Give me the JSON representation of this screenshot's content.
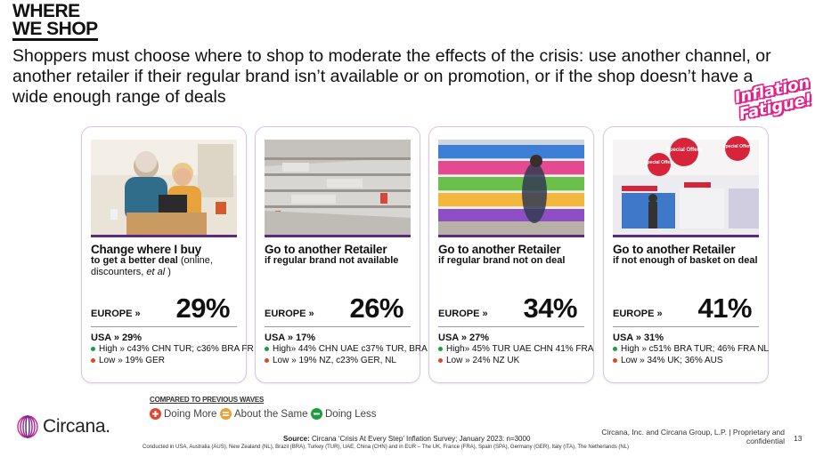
{
  "header": {
    "line1": "WHERE",
    "line2": "WE SHOP",
    "subtitle": "Shoppers must choose where to shop to moderate the effects of the crisis: use another channel, or another retailer if their regular brand isn’t available or on promotion, or if the shop doesn’t have a wide enough range of deals",
    "stamp_line1": "Inflation",
    "stamp_line2": "Fatigue!"
  },
  "cards": [
    {
      "title": "Change where I buy",
      "sub_bold": "to get a better deal",
      "sub_rest": " (online, discounters, ",
      "sub_italic": "et al",
      "sub_end": " )",
      "europe_label": "EUROPE  »",
      "europe_value": "29%",
      "usa": "USA » 29%",
      "high": "High » c43% CHN TUR; c36% BRA FR",
      "low": "Low » 19% GER"
    },
    {
      "title": "Go to another Retailer",
      "sub_bold": "if regular brand not available",
      "europe_label": "EUROPE  »",
      "europe_value": "26%",
      "usa": "USA » 17%",
      "high": "High» 44% CHN UAE c37% TUR, BRA",
      "low": "Low » 19% NZ, c23% GER, NL"
    },
    {
      "title": "Go to another Retailer",
      "sub_bold": "if regular brand not on deal",
      "europe_label": "EUROPE  »",
      "europe_value": "34%",
      "usa": "USA » 27%",
      "high": "High» 45% TUR UAE CHN 41% FRA",
      "low": "Low » 24% NZ UK"
    },
    {
      "title": "Go to another Retailer",
      "sub_bold": "if not enough of basket on deal",
      "europe_label": "EUROPE  »",
      "europe_value": "41%",
      "usa": "USA » 31%",
      "high": "High » c51% BRA TUR; 46% FRA NL",
      "low": "Low » 34% UK; 36% AUS"
    }
  ],
  "photo_signs": {
    "special_offers": "Special Offers"
  },
  "legend": {
    "title": "COMPARED TO PREVIOUS WAVES",
    "more": "Doing More",
    "same": "About the Same",
    "less": "Doing Less"
  },
  "footer": {
    "logo": "Circana.",
    "source_bold": "Source:",
    "source_rest": " Circana ‘Crisis At Every Step’ Inflation Survey; January 2023:  n=3000",
    "conducted": "Conducted in USA, Australia (AUS), New Zealand (NL), Brazil (BRA), Turkey (TUR), UAE, China (CHN) and in EUR – The UK, France (FRA), Spain (SPA), Germany (GER), Italy (ITA), The Netherlands (NL)",
    "proprietary_line1": "Circana, Inc. and Circana Group, L.P. |  Proprietary and",
    "proprietary_line2": "confidential",
    "page": "13"
  },
  "colors": {
    "accent_purple": "#5b2a7e",
    "stamp_pink": "#e0218a",
    "legend_more": "#e2442c",
    "legend_same": "#f0a030",
    "legend_less": "#1b9e3e"
  }
}
